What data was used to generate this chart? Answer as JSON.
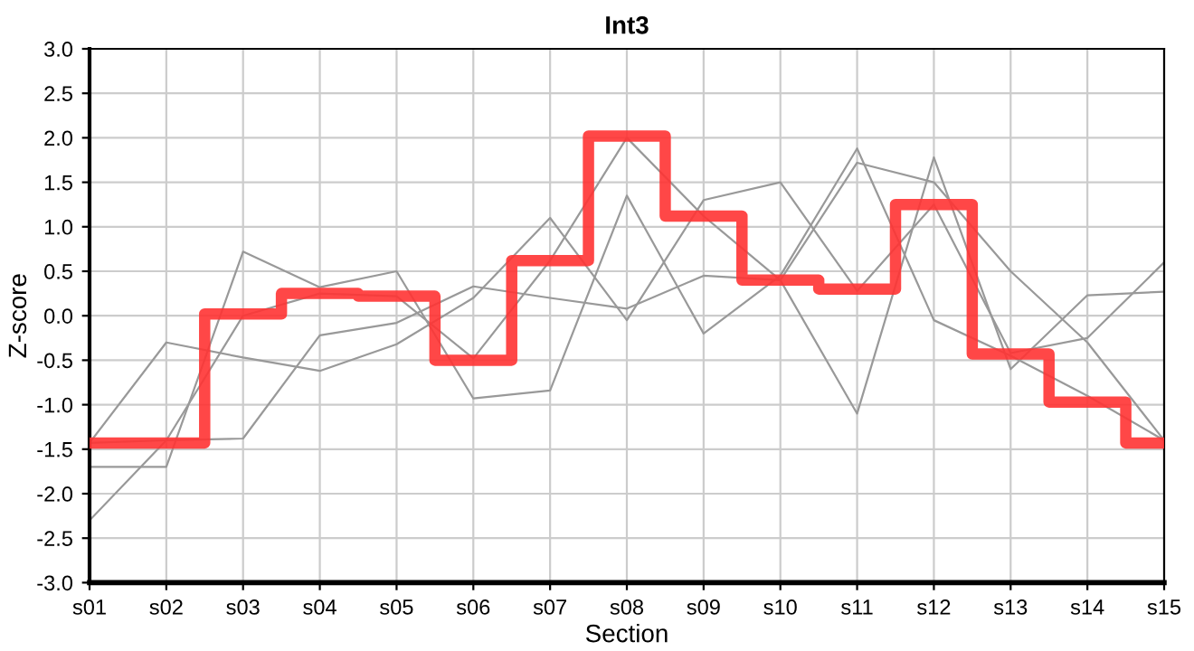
{
  "chart_data": {
    "type": "line",
    "title": "Int3",
    "xlabel": "Section",
    "ylabel": "Z-score",
    "categories": [
      "s01",
      "s02",
      "s03",
      "s04",
      "s05",
      "s06",
      "s07",
      "s08",
      "s09",
      "s10",
      "s11",
      "s12",
      "s13",
      "s14",
      "s15"
    ],
    "series": [
      {
        "color": "#999999",
        "values": [
          -2.3,
          -1.4,
          0.0,
          0.25,
          0.22,
          -0.48,
          0.62,
          2.0,
          1.12,
          0.4,
          1.72,
          1.5,
          0.5,
          -0.3,
          -1.4
        ]
      },
      {
        "color": "#999999",
        "values": [
          -1.7,
          -1.7,
          0.72,
          0.32,
          0.5,
          -0.93,
          -0.84,
          1.35,
          -0.2,
          0.45,
          1.88,
          -0.05,
          -0.45,
          -0.9,
          -1.4
        ]
      },
      {
        "color": "#999999",
        "values": [
          -1.43,
          -0.3,
          -0.47,
          -0.62,
          -0.32,
          0.2,
          1.1,
          -0.05,
          1.3,
          1.5,
          0.28,
          1.25,
          -0.42,
          -0.25,
          0.6
        ]
      },
      {
        "color": "#999999",
        "values": [
          -1.43,
          -1.4,
          -1.38,
          -0.22,
          -0.08,
          0.33,
          0.2,
          0.08,
          0.45,
          0.4,
          -1.1,
          1.78,
          -0.6,
          0.23,
          0.27
        ]
      },
      {
        "type": "step",
        "color": "#ff3333",
        "values": [
          -1.43,
          -1.43,
          0.02,
          0.25,
          0.22,
          -0.5,
          0.62,
          2.02,
          1.12,
          0.4,
          0.3,
          1.25,
          -0.43,
          -0.97,
          -1.43
        ]
      }
    ],
    "ylim": [
      -3.0,
      3.0
    ],
    "yticks": [
      {
        "value": -3,
        "label": "-3.0"
      },
      {
        "value": -2.5,
        "label": "-2.5"
      },
      {
        "value": -2,
        "label": "-2.0"
      },
      {
        "value": -1.5,
        "label": "-1.5"
      },
      {
        "value": -1,
        "label": "-1.0"
      },
      {
        "value": -0.5,
        "label": "-0.5"
      },
      {
        "value": 0,
        "label": "0.0"
      },
      {
        "value": 0.5,
        "label": "0.5"
      },
      {
        "value": 1,
        "label": "1.0"
      },
      {
        "value": 1.5,
        "label": "1.5"
      },
      {
        "value": 2,
        "label": "2.0"
      },
      {
        "value": 2.5,
        "label": "2.5"
      },
      {
        "value": 3,
        "label": "3.0"
      }
    ],
    "grid": true
  }
}
